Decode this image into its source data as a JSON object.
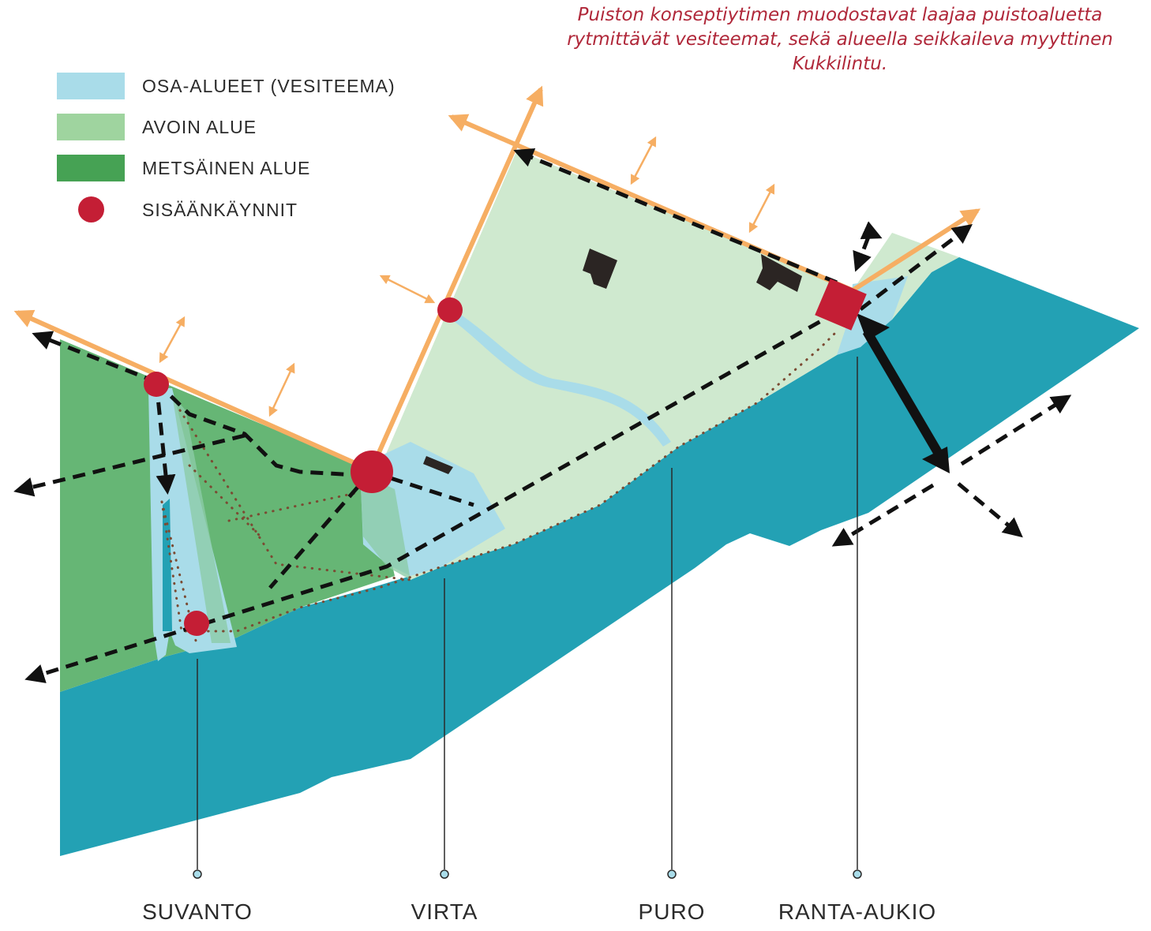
{
  "caption": "Puiston konseptiytimen muodostavat laajaa puistoaluetta rytmittävät vesiteemat, sekä alueella seikkaileva myyttinen Kukkilintu.",
  "legend": [
    {
      "label": "OSA-ALUEET (VESITEEMA)",
      "color": "#a9dce9",
      "shape": "rect"
    },
    {
      "label": "AVOIN ALUE",
      "color": "#9fd49f",
      "shape": "rect"
    },
    {
      "label": "METSÄINEN ALUE",
      "color": "#46a254",
      "shape": "rect"
    },
    {
      "label": "SISÄÄNKÄYNNIT",
      "color": "#c41e35",
      "shape": "circle"
    }
  ],
  "zones": [
    "SUVANTO",
    "VIRTA",
    "PURO",
    "RANTA-AUKIO"
  ],
  "colors": {
    "sea": "#23a1b4",
    "forest": "#66b675",
    "open_area": "#cfe9cf",
    "water_theme": "#a9dce9",
    "entrance": "#c41e35",
    "boundary": "#f6ae63",
    "path": "#111111",
    "trail": "#7b4b33",
    "building": "#2b2523"
  }
}
